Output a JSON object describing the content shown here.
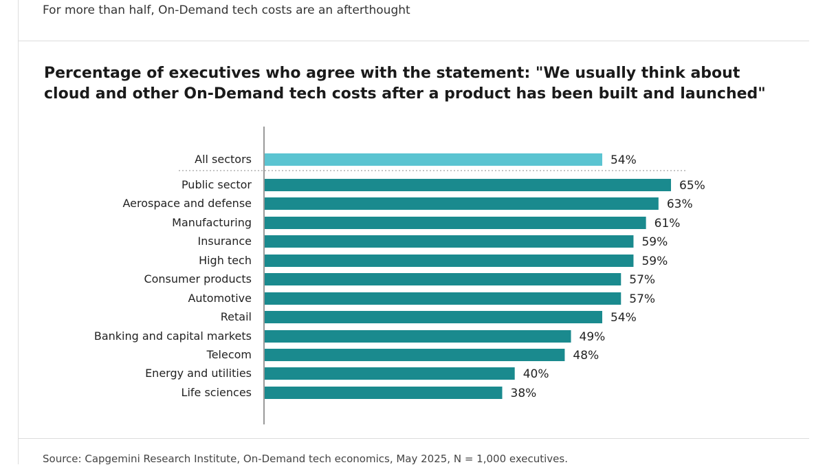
{
  "header": {
    "subtitle": "For more than half, On-Demand tech costs are an afterthought"
  },
  "footer": {
    "source": "Source: Capgemini Research Institute, On-Demand tech economics, May 2025, N = 1,000 executives."
  },
  "colors": {
    "highlight_bar": "#5bc4d1",
    "bar": "#1a8a8e",
    "axis": "#555555",
    "text": "#222222"
  },
  "chart_data": {
    "type": "bar",
    "orientation": "horizontal",
    "title": "Percentage of executives who agree with the statement: \"We usually think about cloud and other On-Demand tech costs after a product has been built and launched\"",
    "categories": [
      "All sectors",
      "Public sector",
      "Aerospace and defense",
      "Manufacturing",
      "Insurance",
      "High tech",
      "Consumer products",
      "Automotive",
      "Retail",
      "Banking and capital markets",
      "Telecom",
      "Energy and utilities",
      "Life sciences"
    ],
    "values": [
      54,
      65,
      63,
      61,
      59,
      59,
      57,
      57,
      54,
      49,
      48,
      40,
      38
    ],
    "labels": [
      "54%",
      "65%",
      "63%",
      "61%",
      "59%",
      "59%",
      "57%",
      "57%",
      "54%",
      "49%",
      "48%",
      "40%",
      "38%"
    ],
    "highlight_index": 0,
    "unit": "%",
    "xlim": [
      0,
      65
    ]
  }
}
